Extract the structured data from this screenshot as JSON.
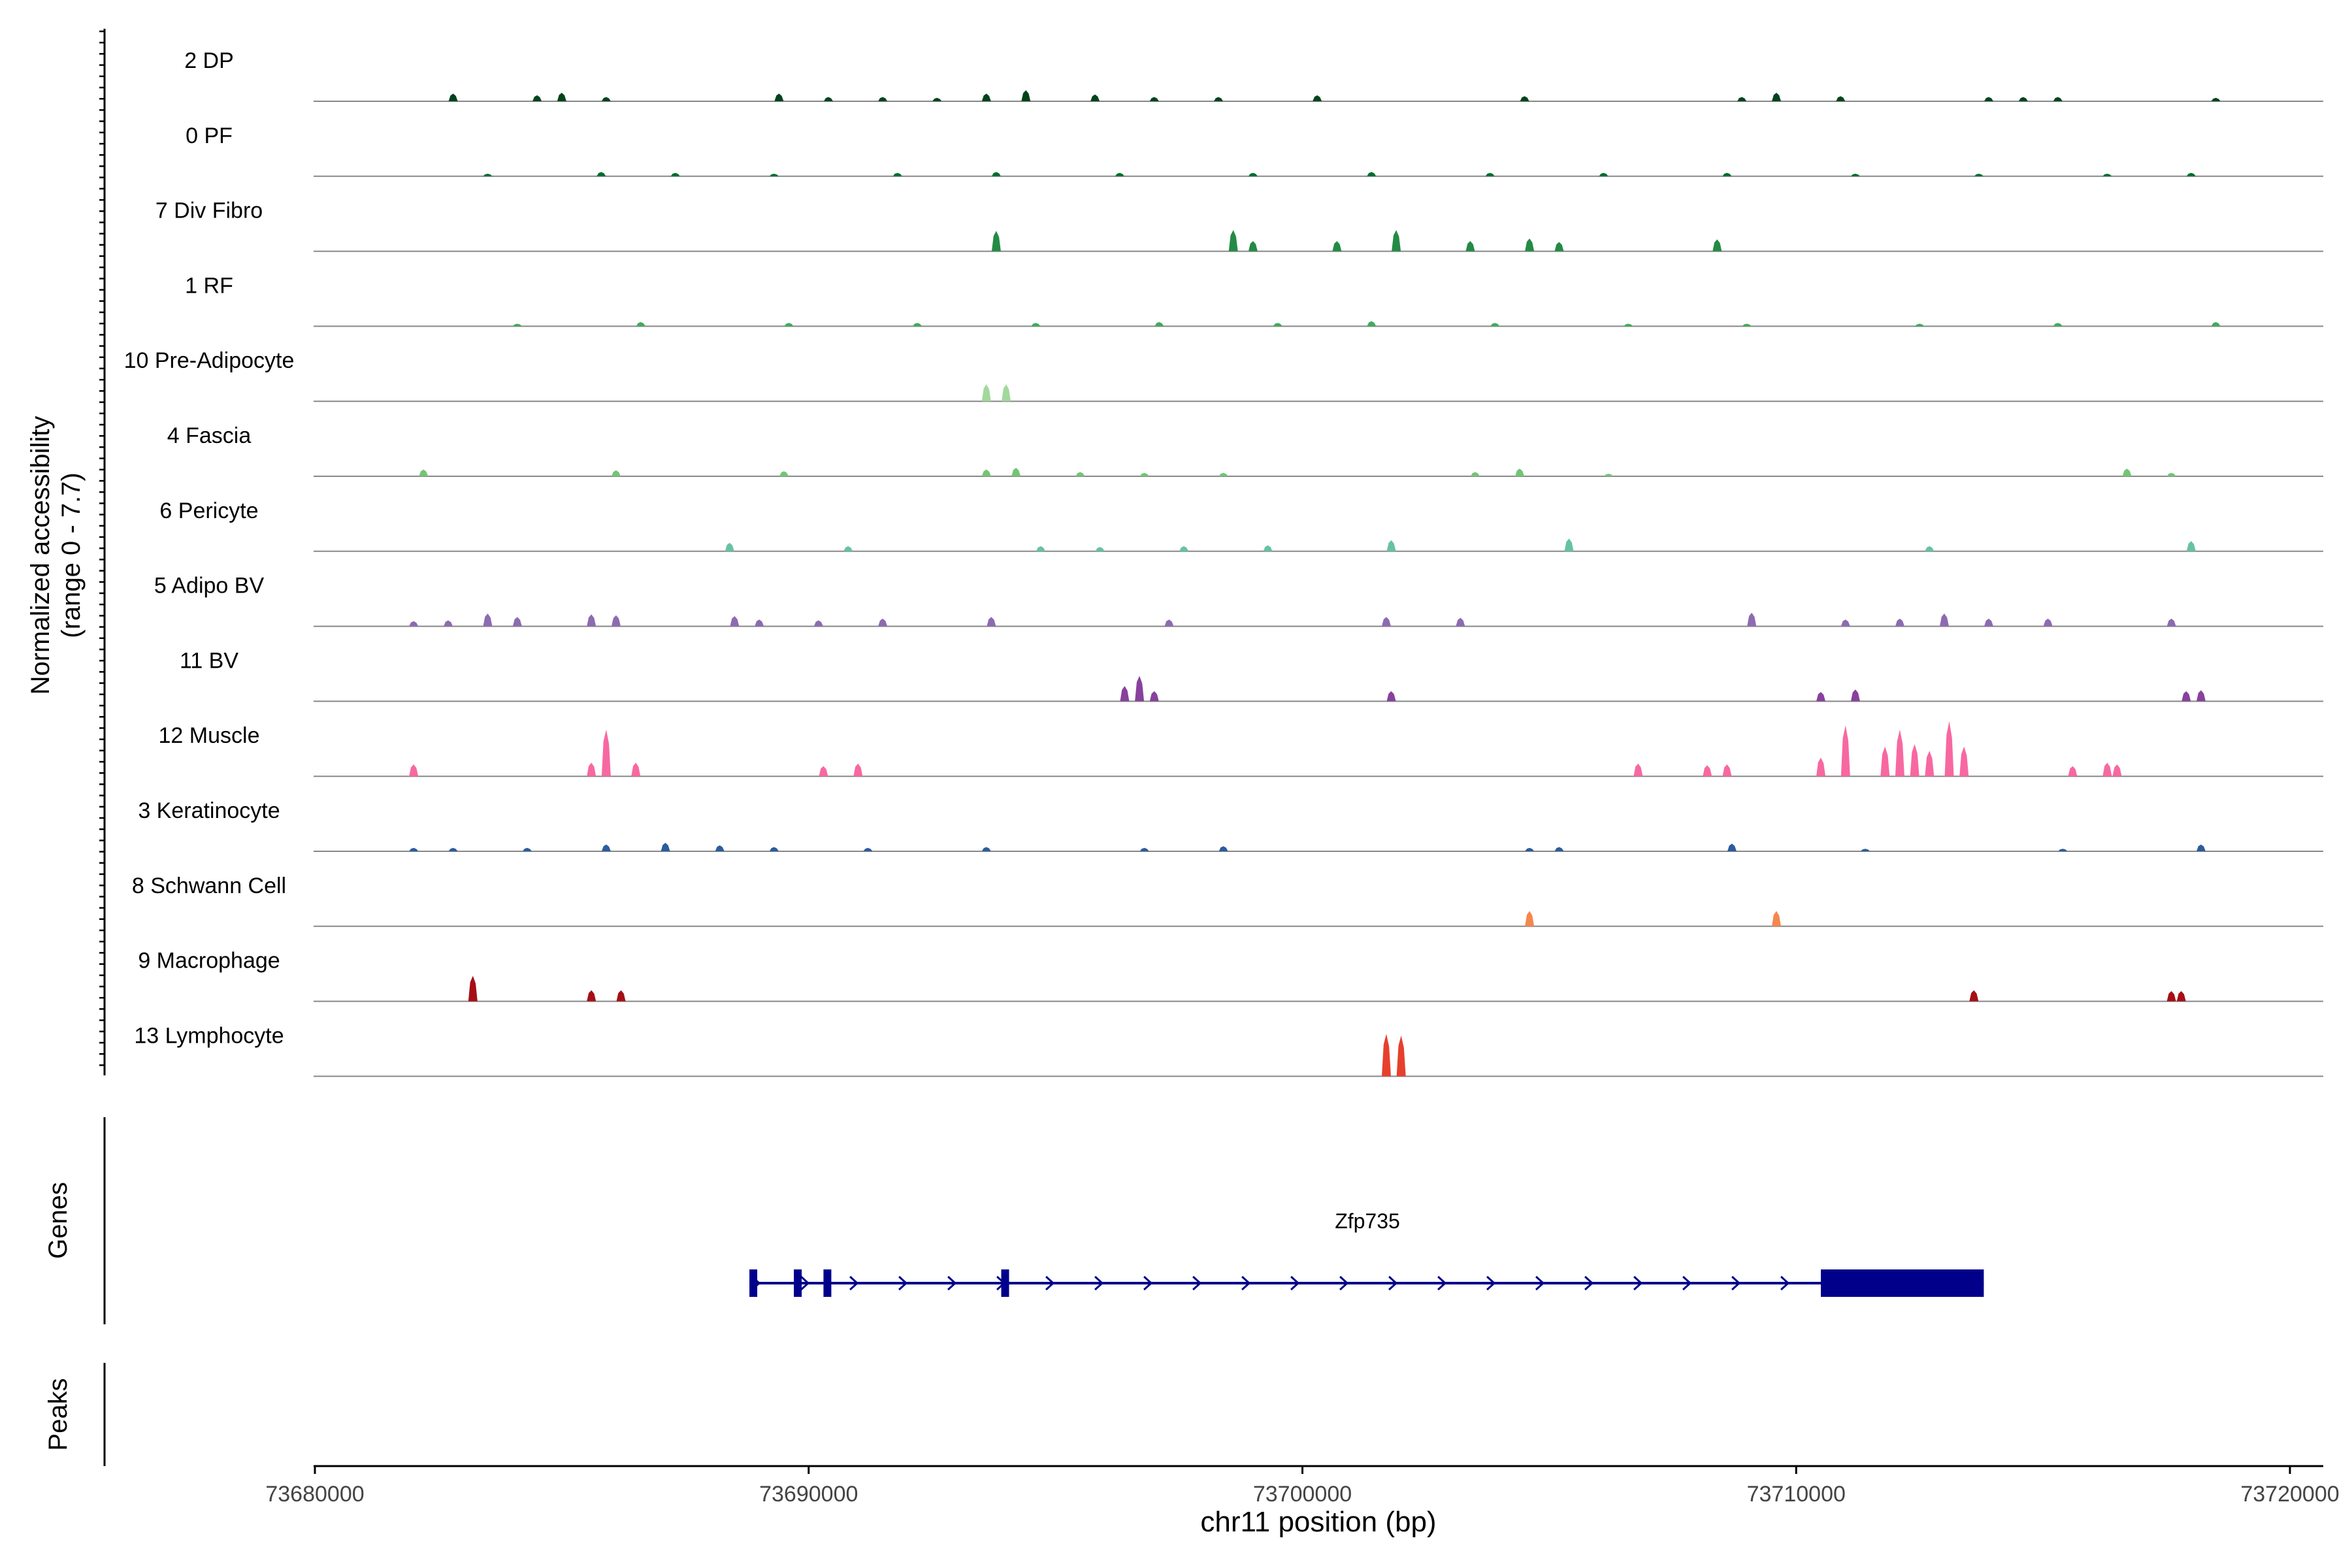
{
  "chart_data": {
    "type": "area",
    "title": "",
    "ylabel_line1": "Normalized accessibility",
    "ylabel_line2": "(range 0 - 7.7)",
    "xlabel": "chr11 position (bp)",
    "xlim": [
      73680000,
      73720000
    ],
    "ylim": [
      0,
      7.7
    ],
    "x_ticks": [
      73680000,
      73690000,
      73700000,
      73710000,
      73720000
    ],
    "x_tick_labels": [
      "73680000",
      "73690000",
      "73700000",
      "73710000",
      "73720000"
    ],
    "genes_label": "Genes",
    "peaks_label": "Peaks",
    "gene": {
      "name": "Zfp735",
      "start": 73688800,
      "end": 73713800,
      "strand": "+",
      "exons": [
        [
          73688800,
          73688950
        ],
        [
          73689700,
          73689800
        ],
        [
          73690300,
          73690350
        ],
        [
          73693900,
          73694050
        ],
        [
          73710500,
          73713800
        ]
      ]
    },
    "tracks": [
      {
        "name": "2 DP",
        "color": "#00441b",
        "peaks": [
          [
            73682800,
            0.9
          ],
          [
            73684500,
            0.7
          ],
          [
            73685000,
            1.0
          ],
          [
            73685900,
            0.5
          ],
          [
            73689400,
            0.9
          ],
          [
            73690400,
            0.5
          ],
          [
            73691500,
            0.5
          ],
          [
            73692600,
            0.4
          ],
          [
            73693600,
            0.9
          ],
          [
            73694400,
            1.3
          ],
          [
            73695800,
            0.8
          ],
          [
            73697000,
            0.5
          ],
          [
            73698300,
            0.5
          ],
          [
            73700300,
            0.7
          ],
          [
            73704500,
            0.6
          ],
          [
            73708900,
            0.5
          ],
          [
            73709600,
            1.0
          ],
          [
            73710900,
            0.6
          ],
          [
            73713900,
            0.5
          ],
          [
            73714600,
            0.5
          ],
          [
            73715300,
            0.5
          ],
          [
            73718500,
            0.4
          ]
        ]
      },
      {
        "name": "0 PF",
        "color": "#006d2c",
        "peaks": [
          [
            73683500,
            0.3
          ],
          [
            73685800,
            0.5
          ],
          [
            73687300,
            0.4
          ],
          [
            73689300,
            0.3
          ],
          [
            73691800,
            0.4
          ],
          [
            73693800,
            0.5
          ],
          [
            73696300,
            0.4
          ],
          [
            73699000,
            0.4
          ],
          [
            73701400,
            0.5
          ],
          [
            73703800,
            0.4
          ],
          [
            73706100,
            0.4
          ],
          [
            73708600,
            0.4
          ],
          [
            73711200,
            0.3
          ],
          [
            73713700,
            0.3
          ],
          [
            73716300,
            0.3
          ],
          [
            73718000,
            0.4
          ]
        ]
      },
      {
        "name": "7 Div Fibro",
        "color": "#238b45",
        "peaks": [
          [
            73693800,
            2.4
          ],
          [
            73698600,
            2.5
          ],
          [
            73699000,
            1.2
          ],
          [
            73700700,
            1.2
          ],
          [
            73701900,
            2.5
          ],
          [
            73703400,
            1.2
          ],
          [
            73704600,
            1.5
          ],
          [
            73705200,
            1.1
          ],
          [
            73708400,
            1.4
          ]
        ]
      },
      {
        "name": "1 RF",
        "color": "#41ab5d",
        "peaks": [
          [
            73684100,
            0.3
          ],
          [
            73686600,
            0.5
          ],
          [
            73689600,
            0.4
          ],
          [
            73692200,
            0.4
          ],
          [
            73694600,
            0.4
          ],
          [
            73697100,
            0.5
          ],
          [
            73699500,
            0.4
          ],
          [
            73701400,
            0.6
          ],
          [
            73703900,
            0.4
          ],
          [
            73706600,
            0.3
          ],
          [
            73709000,
            0.3
          ],
          [
            73712500,
            0.3
          ],
          [
            73715300,
            0.4
          ],
          [
            73718500,
            0.5
          ]
        ]
      },
      {
        "name": "10 Pre-Adipocyte",
        "color": "#a1d99b",
        "peaks": [
          [
            73693600,
            2.0
          ],
          [
            73694000,
            2.0
          ]
        ]
      },
      {
        "name": "4 Fascia",
        "color": "#74c476",
        "peaks": [
          [
            73682200,
            0.8
          ],
          [
            73686100,
            0.7
          ],
          [
            73689500,
            0.6
          ],
          [
            73693600,
            0.8
          ],
          [
            73694200,
            1.0
          ],
          [
            73695500,
            0.5
          ],
          [
            73696800,
            0.4
          ],
          [
            73698400,
            0.4
          ],
          [
            73703500,
            0.5
          ],
          [
            73704400,
            0.9
          ],
          [
            73706200,
            0.3
          ],
          [
            73716700,
            0.9
          ],
          [
            73717600,
            0.4
          ]
        ]
      },
      {
        "name": "6 Pericyte",
        "color": "#66c2a4",
        "peaks": [
          [
            73688400,
            1.0
          ],
          [
            73690800,
            0.6
          ],
          [
            73694700,
            0.6
          ],
          [
            73695900,
            0.5
          ],
          [
            73697600,
            0.6
          ],
          [
            73699300,
            0.7
          ],
          [
            73701800,
            1.3
          ],
          [
            73705400,
            1.5
          ],
          [
            73712700,
            0.6
          ],
          [
            73718000,
            1.2
          ]
        ]
      },
      {
        "name": "5 Adipo BV",
        "color": "#8c6bb1",
        "peaks": [
          [
            73682000,
            0.6
          ],
          [
            73682700,
            0.7
          ],
          [
            73683500,
            1.5
          ],
          [
            73684100,
            1.1
          ],
          [
            73685600,
            1.4
          ],
          [
            73686100,
            1.3
          ],
          [
            73688500,
            1.2
          ],
          [
            73689000,
            0.8
          ],
          [
            73690200,
            0.7
          ],
          [
            73691500,
            0.9
          ],
          [
            73693700,
            1.1
          ],
          [
            73697300,
            0.8
          ],
          [
            73701700,
            1.1
          ],
          [
            73703200,
            1.0
          ],
          [
            73709100,
            1.6
          ],
          [
            73711000,
            0.8
          ],
          [
            73712100,
            0.9
          ],
          [
            73713000,
            1.5
          ],
          [
            73713900,
            0.9
          ],
          [
            73715100,
            0.9
          ],
          [
            73717600,
            0.9
          ]
        ]
      },
      {
        "name": "11 BV",
        "color": "#88419d",
        "peaks": [
          [
            73696400,
            1.8
          ],
          [
            73696700,
            3.0
          ],
          [
            73697000,
            1.2
          ],
          [
            73701800,
            1.2
          ],
          [
            73710500,
            1.1
          ],
          [
            73711200,
            1.4
          ],
          [
            73717900,
            1.2
          ],
          [
            73718200,
            1.3
          ]
        ]
      },
      {
        "name": "12 Muscle",
        "color": "#f768a1",
        "peaks": [
          [
            73682000,
            1.4
          ],
          [
            73685600,
            1.6
          ],
          [
            73685900,
            5.5
          ],
          [
            73686500,
            1.6
          ],
          [
            73690300,
            1.2
          ],
          [
            73691000,
            1.5
          ],
          [
            73706800,
            1.5
          ],
          [
            73708200,
            1.3
          ],
          [
            73708600,
            1.4
          ],
          [
            73710500,
            2.2
          ],
          [
            73711000,
            6.0
          ],
          [
            73711800,
            3.5
          ],
          [
            73712100,
            5.5
          ],
          [
            73712400,
            3.8
          ],
          [
            73712700,
            3.0
          ],
          [
            73713100,
            6.5
          ],
          [
            73713400,
            3.5
          ],
          [
            73715600,
            1.2
          ],
          [
            73716300,
            1.6
          ],
          [
            73716500,
            1.4
          ]
        ]
      },
      {
        "name": "3 Keratinocyte",
        "color": "#2b5c9e",
        "peaks": [
          [
            73682000,
            0.4
          ],
          [
            73682800,
            0.4
          ],
          [
            73684300,
            0.4
          ],
          [
            73685900,
            0.8
          ],
          [
            73687100,
            1.0
          ],
          [
            73688200,
            0.7
          ],
          [
            73689300,
            0.5
          ],
          [
            73691200,
            0.4
          ],
          [
            73693600,
            0.5
          ],
          [
            73696800,
            0.4
          ],
          [
            73698400,
            0.6
          ],
          [
            73704600,
            0.4
          ],
          [
            73705200,
            0.5
          ],
          [
            73708700,
            0.9
          ],
          [
            73711400,
            0.3
          ],
          [
            73715400,
            0.3
          ],
          [
            73718200,
            0.8
          ]
        ]
      },
      {
        "name": "8 Schwann Cell",
        "color": "#f4874e",
        "peaks": [
          [
            73704600,
            1.8
          ],
          [
            73709600,
            1.8
          ]
        ]
      },
      {
        "name": "9 Macrophage",
        "color": "#a50f15",
        "peaks": [
          [
            73683200,
            3.0
          ],
          [
            73685600,
            1.3
          ],
          [
            73686200,
            1.3
          ],
          [
            73713600,
            1.3
          ],
          [
            73717600,
            1.2
          ],
          [
            73717800,
            1.2
          ]
        ]
      },
      {
        "name": "13 Lymphocyte",
        "color": "#e6402d",
        "peaks": [
          [
            73701700,
            5.0
          ],
          [
            73702000,
            4.8
          ]
        ]
      }
    ]
  }
}
